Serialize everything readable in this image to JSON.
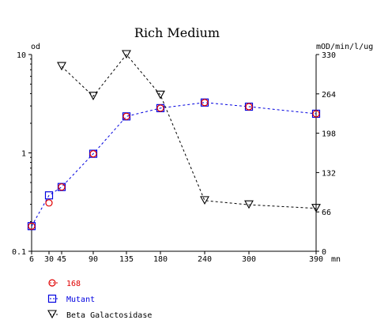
{
  "chart_data": {
    "type": "line",
    "title": "Rich Medium",
    "ylabel_left": "od",
    "ylabel_right": "mOD/min/l/ug",
    "xlabel_unit": "mn",
    "x_ticks": [
      6,
      30,
      45,
      90,
      135,
      180,
      240,
      300,
      390
    ],
    "x_range": [
      6,
      390
    ],
    "y_left_scale": "log",
    "y_left_range": [
      0.1,
      10
    ],
    "y_left_ticks": [
      "0.1",
      "1",
      "10"
    ],
    "y_right_range": [
      0,
      330
    ],
    "y_right_ticks": [
      0,
      66,
      132,
      198,
      264,
      330
    ],
    "grid": false,
    "legend_position": "bottom-left",
    "series": [
      {
        "name": "168",
        "axis": "left",
        "marker": "circle",
        "color": "#e00000",
        "line": "none",
        "x": [
          6,
          30,
          45,
          90,
          135,
          180,
          240,
          300,
          390
        ],
        "y": [
          0.18,
          0.31,
          0.45,
          0.98,
          2.35,
          2.85,
          3.25,
          2.95,
          2.5
        ]
      },
      {
        "name": "Mutant",
        "axis": "left",
        "marker": "square",
        "color": "#0000e0",
        "line": "dashed",
        "x": [
          6,
          30,
          45,
          90,
          135,
          180,
          240,
          300,
          390
        ],
        "y": [
          0.18,
          0.37,
          0.45,
          0.98,
          2.35,
          2.85,
          3.25,
          2.95,
          2.5
        ]
      },
      {
        "name": "Beta Galactosidase",
        "axis": "right",
        "marker": "triangle-down",
        "color": "#000000",
        "line": "dashed",
        "x": [
          45,
          90,
          135,
          180,
          240,
          300,
          390
        ],
        "y": [
          310,
          260,
          330,
          262,
          85,
          78,
          72
        ]
      }
    ]
  }
}
